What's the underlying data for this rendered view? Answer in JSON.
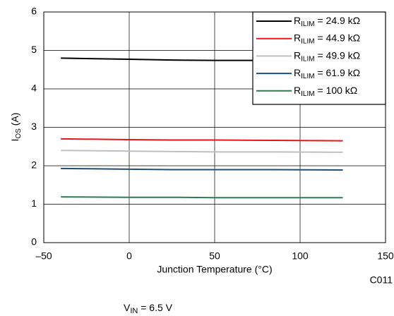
{
  "chart_data": {
    "type": "line",
    "x_label": "Junction Temperature (°C)",
    "y_label": "IOS (A)",
    "code": "C011",
    "note": "VIN = 6.5 V",
    "x": [
      -40,
      0,
      25,
      50,
      85,
      125
    ],
    "series": [
      {
        "name": "RILIM = 24.9 kΩ",
        "color": "#000000",
        "values": [
          4.8,
          4.77,
          4.75,
          4.74,
          4.74,
          4.74
        ]
      },
      {
        "name": "RILIM = 44.9 kΩ",
        "color": "#e8141b",
        "values": [
          2.7,
          2.68,
          2.67,
          2.67,
          2.66,
          2.65
        ]
      },
      {
        "name": "RILIM = 49.9 kΩ",
        "color": "#c0c0c0",
        "values": [
          2.4,
          2.38,
          2.37,
          2.36,
          2.36,
          2.35
        ]
      },
      {
        "name": "RILIM = 61.9 kΩ",
        "color": "#1f4e79",
        "values": [
          1.93,
          1.91,
          1.9,
          1.9,
          1.9,
          1.89
        ]
      },
      {
        "name": "RILIM = 100 kΩ",
        "color": "#2e7d4f",
        "values": [
          1.19,
          1.18,
          1.18,
          1.17,
          1.17,
          1.17
        ]
      }
    ],
    "xlim": [
      -50,
      150
    ],
    "xticks": [
      {
        "value": -50,
        "label": "–50"
      },
      0,
      50,
      100,
      150
    ],
    "ylim": [
      0,
      6
    ],
    "yticks": [
      0,
      1,
      2,
      3,
      4,
      5,
      6
    ],
    "grid": true,
    "legend": "top-right"
  }
}
